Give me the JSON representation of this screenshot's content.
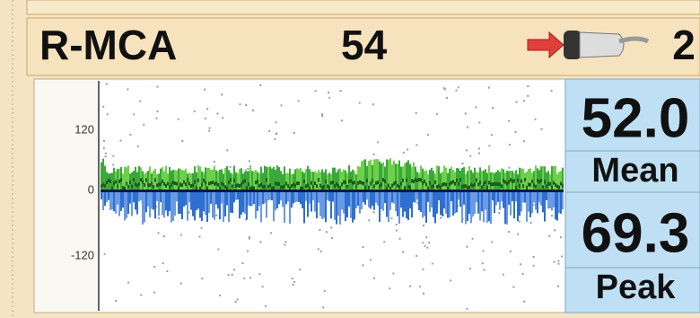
{
  "header": {
    "vessel": "R-MCA",
    "depth": "54",
    "gate": "2"
  },
  "spectrum": {
    "axis_labels": [
      "120",
      "0",
      "-120"
    ]
  },
  "readings": {
    "mean": {
      "value": "52.0",
      "label": "Mean"
    },
    "peak": {
      "value": "69.3",
      "label": "Peak"
    }
  }
}
